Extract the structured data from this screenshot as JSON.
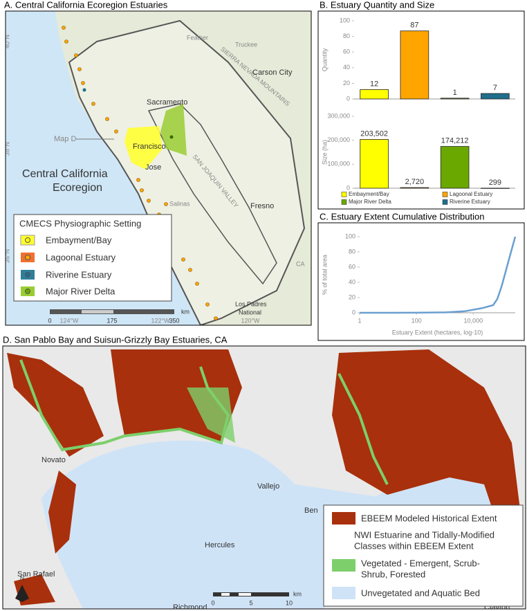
{
  "chart_data": [
    {
      "type": "bar",
      "title": "B. Estuary Quantity and Size",
      "y_label": "Quantity",
      "values": [
        12,
        87,
        1,
        7
      ],
      "colors": [
        "#ffff00",
        "#ffa500",
        "#5e7a14",
        "#1f6e8c"
      ],
      "ylim": [
        0,
        100
      ],
      "yticks": [
        0,
        20,
        40,
        60,
        80,
        100
      ]
    },
    {
      "type": "bar",
      "y_label": "Size (ha)",
      "categories": [
        "Embayment/Bay",
        "Lagoonal Estuary",
        "Major River Delta",
        "Riverine Estuary"
      ],
      "values": [
        203502,
        2720,
        174212,
        299
      ],
      "value_labels": [
        "203,502",
        "2,720",
        "174,212",
        "299"
      ],
      "colors": [
        "#ffff00",
        "#ffa500",
        "#6aa800",
        "#1f6e8c"
      ],
      "ylim": [
        0,
        300000
      ],
      "yticks": [
        0,
        {
          "value": 100000,
          "label": "100,000"
        },
        {
          "value": 200000,
          "label": "200,000"
        },
        {
          "value": 300000,
          "label": "300,000"
        }
      ]
    },
    {
      "type": "line",
      "title": "C. Estuary Extent Cumulative Distribution",
      "x_label": "Estuary Extent (hectares, log-10)",
      "y_label": "% of total area",
      "log_x": true,
      "color": "#6a9fd0",
      "x": [
        1,
        10,
        100,
        1000,
        5000,
        20000,
        50000,
        70000,
        100000,
        180000,
        300000
      ],
      "values": [
        0,
        0,
        0.1,
        0.5,
        2,
        6,
        10,
        18,
        35,
        70,
        100
      ],
      "xlim": [
        1,
        300000
      ],
      "xticks": [
        1,
        100,
        {
          "value": 10000,
          "label": "10,000"
        }
      ],
      "ylim": [
        0,
        100
      ],
      "yticks": [
        0,
        20,
        40,
        60,
        80,
        100
      ]
    }
  ],
  "map_a": {
    "title": "A. Central California Ecoregion Estuaries",
    "lat_labels": [
      "40°N",
      "38°N",
      "36°N"
    ],
    "lon_labels": [
      "124°W",
      "122°W",
      "120°W"
    ],
    "callout": "Map D",
    "region_label": [
      "Central California",
      "Ecoregion"
    ],
    "places": [
      "Sacramento",
      "Carson City",
      "Francisco",
      "Jose",
      "Fresno",
      "Los Padres",
      "National",
      "CA"
    ],
    "basemap": [
      "SIERRA NEVADA MOUNTAINS",
      "SAN JOAQUIN VALLEY",
      "Feather",
      "Truckee",
      "Salinas"
    ],
    "legend": {
      "title": "CMECS Physiographic Setting",
      "items": [
        "Embayment/Bay",
        "Lagoonal Estuary",
        "Riverine Estuary",
        "Major River Delta"
      ]
    },
    "scale": {
      "ticks": [
        "0",
        "175",
        "350"
      ],
      "unit": "km"
    }
  },
  "map_d": {
    "title": "D. San Pablo Bay and Suisun-Grizzly Bay Estuaries, CA",
    "places": [
      "Novato",
      "Vallejo",
      "Hercules",
      "San Rafael",
      "Ben",
      "Richmond",
      "Clayton"
    ],
    "legend": {
      "items": [
        "EBEEM Modeled Historical Extent",
        "NWI Estuarine and Tidally-Modified",
        "Classes within EBEEM Extent",
        "Vegetated - Emergent, Scrub-",
        "Shrub, Forested",
        "Unvegetated and Aquatic Bed"
      ]
    },
    "north": "N",
    "scale": {
      "ticks": [
        "0",
        "5",
        "10"
      ],
      "unit": "km"
    }
  }
}
